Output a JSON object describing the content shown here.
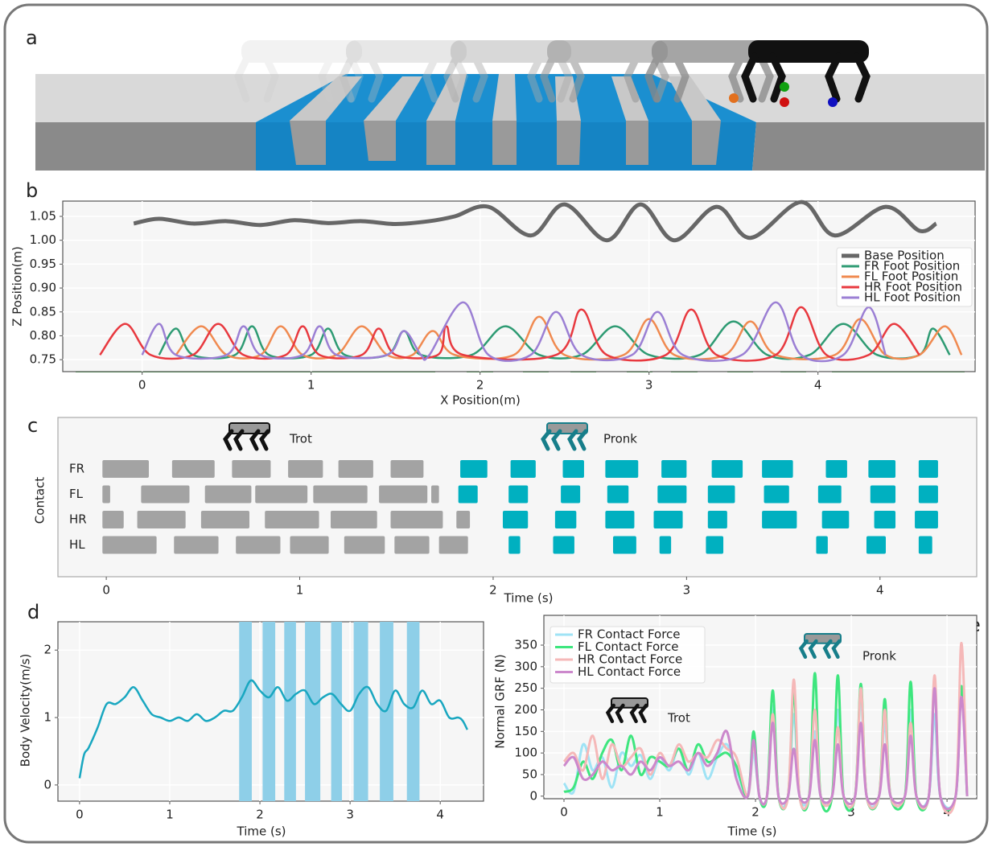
{
  "image_panel": {
    "label": "a"
  },
  "chart_data": [
    {
      "type": "line",
      "label": "b",
      "xlabel": "X Position(m)",
      "ylabel": "Z Position(m)",
      "xlim": [
        -0.47,
        4.93
      ],
      "ylim": [
        0.725,
        1.082
      ],
      "xticks": [
        0,
        1,
        2,
        3,
        4
      ],
      "yticks": [
        0.75,
        {
          "value": 0.8,
          "label": "0.80"
        },
        0.85,
        {
          "value": 0.9,
          "label": "0.90"
        },
        0.95,
        {
          "value": 1,
          "label": "1.00"
        },
        1.05
      ],
      "grid": true,
      "legend": "upper right",
      "series": [
        {
          "name": "Base Position",
          "color": "#676767",
          "x": [
            -0.05,
            0.1,
            0.3,
            0.5,
            0.7,
            0.9,
            1.1,
            1.3,
            1.5,
            1.7,
            1.85,
            2.05,
            2.3,
            2.5,
            2.75,
            2.95,
            3.15,
            3.4,
            3.6,
            3.9,
            4.1,
            4.4,
            4.6,
            4.7
          ],
          "values": [
            1.035,
            1.045,
            1.035,
            1.04,
            1.032,
            1.042,
            1.036,
            1.04,
            1.034,
            1.04,
            1.05,
            1.07,
            1.01,
            1.075,
            1.0,
            1.075,
            1.0,
            1.07,
            1.005,
            1.08,
            1.01,
            1.07,
            1.02,
            1.035
          ]
        },
        {
          "name": "FR Foot Position",
          "color": "#2e9b73",
          "x": [
            0.1,
            0.2,
            0.3,
            0.55,
            0.65,
            0.75,
            1.0,
            1.1,
            1.2,
            1.45,
            1.55,
            1.65,
            1.95,
            2.15,
            2.35,
            2.6,
            2.8,
            3.0,
            3.3,
            3.5,
            3.7,
            3.95,
            4.15,
            4.35,
            4.6,
            4.68,
            4.78
          ],
          "values": [
            0.76,
            0.815,
            0.76,
            0.76,
            0.82,
            0.76,
            0.76,
            0.815,
            0.76,
            0.76,
            0.81,
            0.76,
            0.76,
            0.82,
            0.76,
            0.76,
            0.82,
            0.76,
            0.76,
            0.83,
            0.76,
            0.76,
            0.825,
            0.76,
            0.76,
            0.815,
            0.76
          ]
        },
        {
          "name": "FL Foot Position",
          "color": "#f08a50",
          "x": [
            0.2,
            0.35,
            0.5,
            0.7,
            0.82,
            0.95,
            1.15,
            1.3,
            1.45,
            1.6,
            1.72,
            1.85,
            2.2,
            2.35,
            2.5,
            2.85,
            3.0,
            3.15,
            3.45,
            3.6,
            3.75,
            4.1,
            4.25,
            4.4,
            4.6,
            4.75,
            4.85
          ],
          "values": [
            0.76,
            0.82,
            0.76,
            0.76,
            0.82,
            0.76,
            0.76,
            0.82,
            0.76,
            0.76,
            0.81,
            0.76,
            0.76,
            0.84,
            0.76,
            0.76,
            0.835,
            0.76,
            0.76,
            0.83,
            0.76,
            0.76,
            0.835,
            0.76,
            0.76,
            0.82,
            0.76
          ]
        },
        {
          "name": "HR Foot Position",
          "color": "#e8393f",
          "x": [
            -0.25,
            -0.1,
            0.05,
            0.3,
            0.45,
            0.6,
            0.85,
            0.95,
            1.05,
            1.3,
            1.4,
            1.5,
            1.75,
            1.8,
            1.9,
            2.45,
            2.6,
            2.75,
            3.1,
            3.25,
            3.4,
            3.75,
            3.9,
            4.05,
            4.3,
            4.45,
            4.6
          ],
          "values": [
            0.76,
            0.825,
            0.76,
            0.76,
            0.825,
            0.76,
            0.76,
            0.82,
            0.76,
            0.76,
            0.815,
            0.76,
            0.76,
            0.82,
            0.76,
            0.76,
            0.855,
            0.76,
            0.76,
            0.855,
            0.76,
            0.76,
            0.86,
            0.76,
            0.76,
            0.825,
            0.76
          ]
        },
        {
          "name": "HL Foot Position",
          "color": "#9b7fd4",
          "x": [
            0.0,
            0.1,
            0.2,
            0.5,
            0.6,
            0.7,
            0.95,
            1.05,
            1.15,
            1.45,
            1.55,
            1.65,
            1.7,
            1.9,
            2.05,
            2.3,
            2.45,
            2.6,
            2.9,
            3.05,
            3.2,
            3.55,
            3.75,
            3.9,
            4.15,
            4.3,
            4.4
          ],
          "values": [
            0.76,
            0.825,
            0.76,
            0.76,
            0.82,
            0.76,
            0.76,
            0.82,
            0.76,
            0.76,
            0.81,
            0.76,
            0.76,
            0.87,
            0.76,
            0.76,
            0.85,
            0.76,
            0.76,
            0.85,
            0.76,
            0.76,
            0.87,
            0.76,
            0.76,
            0.86,
            0.76
          ]
        }
      ]
    },
    {
      "type": "gantt",
      "label": "c",
      "xlabel": "Time (s)",
      "ylabel": "Contact",
      "xlim": [
        -0.25,
        4.5
      ],
      "xticks": [
        0,
        1,
        2,
        3,
        4
      ],
      "grid": false,
      "categories": [
        "FR",
        "FL",
        "HR",
        "HL"
      ],
      "gaits": [
        {
          "name": "Trot",
          "color": "#a3a3a3",
          "rows": [
            [
              [
                -0.02,
                0.22
              ],
              [
                0.34,
                0.56
              ],
              [
                0.65,
                0.85
              ],
              [
                0.94,
                1.12
              ],
              [
                1.2,
                1.38
              ],
              [
                1.47,
                1.64
              ]
            ],
            [
              [
                -0.02,
                0.02
              ],
              [
                0.18,
                0.43
              ],
              [
                0.51,
                0.75
              ],
              [
                0.77,
                1.04
              ],
              [
                1.07,
                1.35
              ],
              [
                1.41,
                1.66
              ],
              [
                1.68,
                1.72
              ]
            ],
            [
              [
                -0.02,
                0.09
              ],
              [
                0.16,
                0.41
              ],
              [
                0.49,
                0.74
              ],
              [
                0.82,
                1.1
              ],
              [
                1.16,
                1.4
              ],
              [
                1.47,
                1.74
              ],
              [
                1.81,
                1.88
              ]
            ],
            [
              [
                -0.02,
                0.26
              ],
              [
                0.35,
                0.58
              ],
              [
                0.67,
                0.9
              ],
              [
                0.95,
                1.15
              ],
              [
                1.23,
                1.44
              ],
              [
                1.49,
                1.67
              ],
              [
                1.72,
                1.87
              ]
            ]
          ]
        },
        {
          "name": "Pronk",
          "color": "#00b0c0",
          "rows": [
            [
              [
                1.83,
                1.97
              ],
              [
                2.09,
                2.22
              ],
              [
                2.36,
                2.47
              ],
              [
                2.58,
                2.75
              ],
              [
                2.87,
                3.0
              ],
              [
                3.13,
                3.29
              ],
              [
                3.39,
                3.55
              ],
              [
                3.72,
                3.83
              ],
              [
                3.94,
                4.08
              ],
              [
                4.2,
                4.3
              ]
            ],
            [
              [
                1.82,
                1.92
              ],
              [
                2.08,
                2.18
              ],
              [
                2.35,
                2.45
              ],
              [
                2.59,
                2.7
              ],
              [
                2.85,
                3.0
              ],
              [
                3.11,
                3.25
              ],
              [
                3.4,
                3.53
              ],
              [
                3.68,
                3.8
              ],
              [
                3.95,
                4.08
              ],
              [
                4.2,
                4.3
              ]
            ],
            [
              [
                2.05,
                2.18
              ],
              [
                2.32,
                2.43
              ],
              [
                2.58,
                2.73
              ],
              [
                2.83,
                2.98
              ],
              [
                3.11,
                3.21
              ],
              [
                3.39,
                3.57
              ],
              [
                3.7,
                3.84
              ],
              [
                3.97,
                4.08
              ],
              [
                4.18,
                4.3
              ]
            ],
            [
              [
                2.08,
                2.14
              ],
              [
                2.31,
                2.42
              ],
              [
                2.62,
                2.74
              ],
              [
                2.86,
                2.92
              ],
              [
                3.1,
                3.19
              ],
              [
                3.67,
                3.73
              ],
              [
                3.93,
                4.03
              ],
              [
                4.2,
                4.27
              ]
            ]
          ]
        }
      ]
    },
    {
      "type": "line",
      "label": "d",
      "xlabel": "Time (s)",
      "ylabel": "Body Velocity(m/s)",
      "xlim": [
        -0.24,
        4.48
      ],
      "ylim": [
        -0.24,
        2.42
      ],
      "xticks": [
        0,
        1,
        2,
        3,
        4
      ],
      "yticks": [
        0,
        1,
        2
      ],
      "grid": true,
      "spans": [
        [
          1.77,
          1.91
        ],
        [
          2.03,
          2.17
        ],
        [
          2.27,
          2.4
        ],
        [
          2.5,
          2.67
        ],
        [
          2.79,
          2.91
        ],
        [
          3.04,
          3.2
        ],
        [
          3.33,
          3.48
        ],
        [
          3.63,
          3.77
        ]
      ],
      "span_color": "#8ecfe8",
      "x": [
        0,
        0.05,
        0.1,
        0.2,
        0.3,
        0.4,
        0.5,
        0.6,
        0.7,
        0.8,
        0.9,
        1,
        1.1,
        1.2,
        1.3,
        1.4,
        1.5,
        1.6,
        1.7,
        1.8,
        1.9,
        2,
        2.1,
        2.2,
        2.3,
        2.4,
        2.5,
        2.6,
        2.7,
        2.8,
        2.9,
        3,
        3.1,
        3.2,
        3.3,
        3.4,
        3.5,
        3.6,
        3.7,
        3.8,
        3.9,
        4,
        4.1,
        4.2,
        4.25,
        4.3
      ],
      "series": [
        {
          "color": "#19a7c0",
          "values": [
            0.1,
            0.45,
            0.55,
            0.85,
            1.2,
            1.2,
            1.3,
            1.45,
            1.25,
            1.05,
            1.0,
            0.95,
            1.0,
            0.95,
            1.05,
            0.95,
            1.0,
            1.1,
            1.1,
            1.3,
            1.55,
            1.4,
            1.3,
            1.45,
            1.25,
            1.35,
            1.4,
            1.2,
            1.3,
            1.35,
            1.2,
            1.1,
            1.35,
            1.45,
            1.2,
            1.1,
            1.4,
            1.2,
            1.15,
            1.4,
            1.2,
            1.25,
            1.0,
            1.0,
            0.95,
            0.82
          ]
        }
      ]
    },
    {
      "type": "line",
      "label": "e",
      "xlabel": "Time (s)",
      "ylabel": "Normal GRF (N)",
      "xlim": [
        -0.21,
        4.31
      ],
      "ylim": [
        -6,
        419
      ],
      "xticks": [
        0,
        1,
        2,
        3,
        4
      ],
      "yticks": [
        0,
        50,
        100,
        150,
        200,
        250,
        300,
        350
      ],
      "grid": true,
      "legend": "upper left",
      "annotations": [
        "Trot",
        "Pronk"
      ],
      "x": [
        0,
        0.1,
        0.2,
        0.3,
        0.4,
        0.5,
        0.6,
        0.7,
        0.8,
        0.9,
        1,
        1.1,
        1.2,
        1.3,
        1.4,
        1.5,
        1.6,
        1.7,
        1.8,
        1.92,
        1.98,
        2.04,
        2.12,
        2.18,
        2.24,
        2.34,
        2.4,
        2.46,
        2.56,
        2.62,
        2.68,
        2.8,
        2.86,
        2.92,
        3.04,
        3.1,
        3.16,
        3.29,
        3.35,
        3.41,
        3.56,
        3.62,
        3.68,
        3.81,
        3.87,
        3.93,
        4.09,
        4.15,
        4.21
      ],
      "series": [
        {
          "name": "FR Contact Force",
          "color": "#9fe3f5",
          "values": [
            30,
            10,
            120,
            60,
            90,
            20,
            100,
            70,
            95,
            40,
            90,
            60,
            110,
            50,
            100,
            40,
            90,
            120,
            60,
            0,
            100,
            0,
            0,
            210,
            0,
            0,
            190,
            0,
            0,
            150,
            0,
            0,
            200,
            0,
            0,
            230,
            0,
            0,
            170,
            0,
            0,
            200,
            0,
            0,
            190,
            0,
            0,
            250,
            0
          ]
        },
        {
          "name": "FL Contact Force",
          "color": "#3ee67e",
          "values": [
            10,
            20,
            80,
            40,
            100,
            130,
            60,
            140,
            50,
            90,
            80,
            70,
            110,
            60,
            120,
            80,
            90,
            100,
            70,
            0,
            150,
            0,
            0,
            245,
            0,
            0,
            240,
            0,
            0,
            285,
            0,
            0,
            280,
            0,
            0,
            260,
            0,
            0,
            225,
            0,
            0,
            265,
            0,
            0,
            260,
            0,
            0,
            255,
            0
          ]
        },
        {
          "name": "HR Contact Force",
          "color": "#f5b8b8",
          "values": [
            80,
            100,
            60,
            140,
            40,
            120,
            70,
            90,
            110,
            50,
            100,
            70,
            120,
            80,
            100,
            90,
            130,
            110,
            90,
            0,
            120,
            0,
            0,
            190,
            0,
            0,
            270,
            0,
            0,
            200,
            0,
            0,
            160,
            0,
            0,
            250,
            0,
            0,
            200,
            0,
            0,
            170,
            0,
            0,
            280,
            0,
            0,
            355,
            0
          ]
        },
        {
          "name": "HL Contact Force",
          "color": "#cc88cc",
          "values": [
            70,
            90,
            40,
            50,
            80,
            60,
            70,
            50,
            80,
            60,
            90,
            70,
            80,
            60,
            100,
            70,
            100,
            150,
            40,
            0,
            130,
            0,
            0,
            170,
            0,
            0,
            110,
            0,
            0,
            130,
            0,
            0,
            120,
            0,
            0,
            170,
            0,
            0,
            120,
            0,
            0,
            140,
            0,
            0,
            250,
            0,
            0,
            230,
            0
          ]
        }
      ]
    }
  ]
}
